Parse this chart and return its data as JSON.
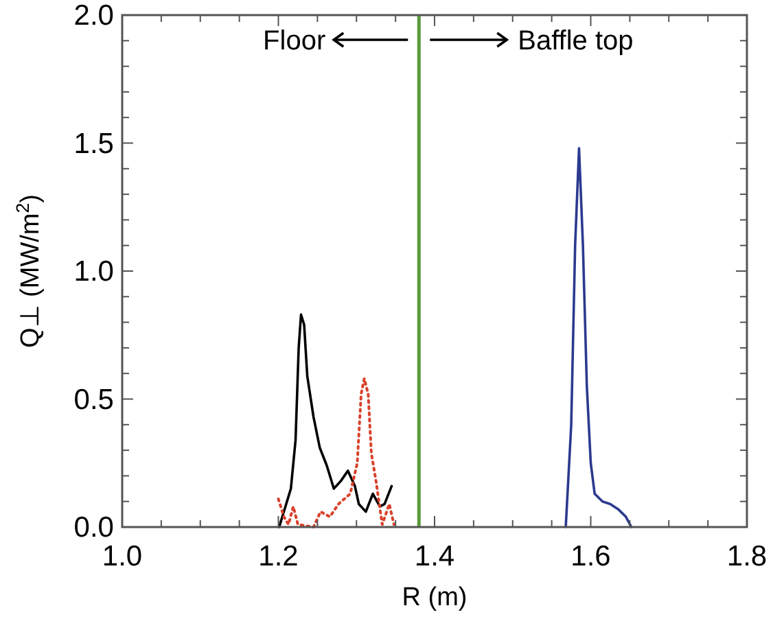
{
  "chart_data": {
    "type": "line",
    "xlabel": "R (m)",
    "ylabel": "Q⊥ (MW/m$^{2}$)",
    "xlim": [
      1.0,
      1.8
    ],
    "ylim": [
      0,
      2.0
    ],
    "xticks": [
      {
        "value": 1.0,
        "label": "1.0"
      },
      {
        "value": 1.05,
        "label": null
      },
      {
        "value": 1.1,
        "label": null
      },
      {
        "value": 1.15,
        "label": null
      },
      {
        "value": 1.2,
        "label": "1.2"
      },
      {
        "value": 1.25,
        "label": null
      },
      {
        "value": 1.3,
        "label": null
      },
      {
        "value": 1.35,
        "label": null
      },
      {
        "value": 1.4,
        "label": "1.4"
      },
      {
        "value": 1.45,
        "label": null
      },
      {
        "value": 1.5,
        "label": null
      },
      {
        "value": 1.55,
        "label": null
      },
      {
        "value": 1.6,
        "label": "1.6"
      },
      {
        "value": 1.65,
        "label": null
      },
      {
        "value": 1.7,
        "label": null
      },
      {
        "value": 1.75,
        "label": null
      },
      {
        "value": 1.8,
        "label": "1.8"
      }
    ],
    "yticks": [
      {
        "value": 0,
        "label": "0.0"
      },
      {
        "value": 0.1,
        "label": null
      },
      {
        "value": 0.2,
        "label": null
      },
      {
        "value": 0.3,
        "label": null
      },
      {
        "value": 0.4,
        "label": null
      },
      {
        "value": 0.5,
        "label": "0.5"
      },
      {
        "value": 0.6,
        "label": null
      },
      {
        "value": 0.7,
        "label": null
      },
      {
        "value": 0.8,
        "label": null
      },
      {
        "value": 0.9,
        "label": null
      },
      {
        "value": 1.0,
        "label": "1.0"
      },
      {
        "value": 1.1,
        "label": null
      },
      {
        "value": 1.2,
        "label": null
      },
      {
        "value": 1.3,
        "label": null
      },
      {
        "value": 1.4,
        "label": null
      },
      {
        "value": 1.5,
        "label": "1.5"
      },
      {
        "value": 1.6,
        "label": null
      },
      {
        "value": 1.7,
        "label": null
      },
      {
        "value": 1.8,
        "label": null
      },
      {
        "value": 1.9,
        "label": null
      },
      {
        "value": 2.0,
        "label": "2.0"
      }
    ],
    "grid": false,
    "marker": "none",
    "ref_lines": [
      {
        "axis": "x",
        "value": 1.38,
        "color": "#5a9a3a"
      }
    ],
    "annotations": [
      "Floor",
      "Baffle top"
    ],
    "series": [
      {
        "color": "#000000",
        "line_style": "solid",
        "x": [
          1.201,
          1.21,
          1.216,
          1.222,
          1.226,
          1.229,
          1.233,
          1.237,
          1.245,
          1.253,
          1.262,
          1.271,
          1.28,
          1.289,
          1.298,
          1.303,
          1.312,
          1.321,
          1.33,
          1.336,
          1.345
        ],
        "values": [
          0,
          0.09,
          0.15,
          0.34,
          0.7,
          0.83,
          0.79,
          0.59,
          0.43,
          0.31,
          0.24,
          0.15,
          0.18,
          0.22,
          0.16,
          0.09,
          0.06,
          0.13,
          0.08,
          0.09,
          0.16
        ]
      },
      {
        "color": "#d9412b",
        "line_style": "dotted",
        "x": [
          1.2,
          1.207,
          1.213,
          1.219,
          1.225,
          1.245,
          1.254,
          1.266,
          1.277,
          1.292,
          1.301,
          1.306,
          1.31,
          1.315,
          1.319,
          1.325,
          1.333,
          1.342,
          1.348
        ],
        "values": [
          0.11,
          0.04,
          0.01,
          0.08,
          0.01,
          0,
          0.06,
          0.04,
          0.09,
          0.13,
          0.25,
          0.52,
          0.58,
          0.52,
          0.29,
          0.18,
          0.01,
          0.09,
          0.01
        ]
      },
      {
        "color": "#2b3a8f",
        "line_style": "solid",
        "x": [
          1.568,
          1.575,
          1.58,
          1.585,
          1.59,
          1.595,
          1.6,
          1.605,
          1.615,
          1.625,
          1.635,
          1.645,
          1.652
        ],
        "values": [
          0,
          0.4,
          1.1,
          1.48,
          1.1,
          0.55,
          0.25,
          0.13,
          0.1,
          0.09,
          0.07,
          0.04,
          0
        ]
      }
    ]
  }
}
